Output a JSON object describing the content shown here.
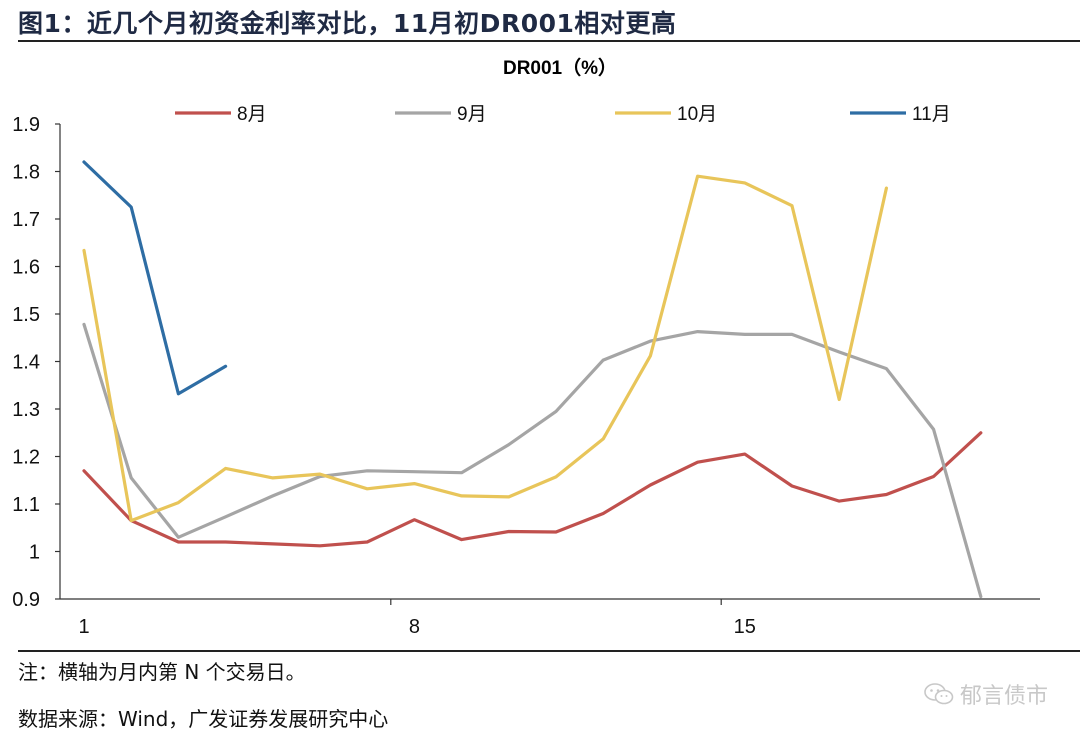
{
  "figure": {
    "title": "图1：近几个月初资金利率对比，11月初DR001相对更高",
    "note": "注：横轴为月内第 N 个交易日。",
    "source": "数据来源：Wind，广发证券发展研究中心",
    "watermark": "郁言债市",
    "watermark_icon": "wechat-icon"
  },
  "chart_data": {
    "type": "line",
    "title": "DR001（%）",
    "xlabel": "",
    "ylabel": "",
    "xlim": [
      1,
      21
    ],
    "ylim": [
      0.9,
      1.9
    ],
    "x_ticks": [
      1,
      8,
      15
    ],
    "y_ticks": [
      0.9,
      1,
      1.1,
      1.2,
      1.3,
      1.4,
      1.5,
      1.6,
      1.7,
      1.8,
      1.9
    ],
    "y_tick_labels": [
      "0.9",
      "1",
      "1.1",
      "1.2",
      "1.3",
      "1.4",
      "1.5",
      "1.6",
      "1.7",
      "1.8",
      "1.9"
    ],
    "legend_position": "top",
    "series": [
      {
        "name": "8月",
        "color": "#c0504d",
        "x": [
          1,
          2,
          3,
          4,
          5,
          6,
          7,
          8,
          9,
          10,
          11,
          12,
          13,
          14,
          15,
          16,
          17,
          18,
          19,
          20
        ],
        "values": [
          1.17,
          1.065,
          1.02,
          1.02,
          1.016,
          1.012,
          1.02,
          1.067,
          1.025,
          1.042,
          1.041,
          1.08,
          1.14,
          1.188,
          1.205,
          1.138,
          1.106,
          1.12,
          1.158,
          1.25
        ]
      },
      {
        "name": "9月",
        "color": "#a5a5a5",
        "x": [
          1,
          2,
          3,
          4,
          5,
          6,
          7,
          8,
          9,
          10,
          11,
          12,
          13,
          14,
          15,
          16,
          17,
          18,
          19,
          20
        ],
        "values": [
          1.478,
          1.155,
          1.03,
          1.073,
          1.117,
          1.158,
          1.17,
          1.168,
          1.166,
          1.225,
          1.295,
          1.403,
          1.443,
          1.463,
          1.457,
          1.457,
          1.42,
          1.385,
          1.257,
          0.905
        ]
      },
      {
        "name": "10月",
        "color": "#e8c55a",
        "x": [
          1,
          2,
          3,
          4,
          5,
          6,
          7,
          8,
          9,
          10,
          11,
          12,
          13,
          14,
          15,
          16,
          17,
          18
        ],
        "values": [
          1.634,
          1.065,
          1.103,
          1.175,
          1.155,
          1.163,
          1.132,
          1.143,
          1.117,
          1.115,
          1.157,
          1.237,
          1.412,
          1.79,
          1.776,
          1.728,
          1.32,
          1.765
        ]
      },
      {
        "name": "11月",
        "color": "#2e6da4",
        "x": [
          1,
          2,
          3,
          4
        ],
        "values": [
          1.82,
          1.725,
          1.332,
          1.39
        ]
      }
    ]
  }
}
